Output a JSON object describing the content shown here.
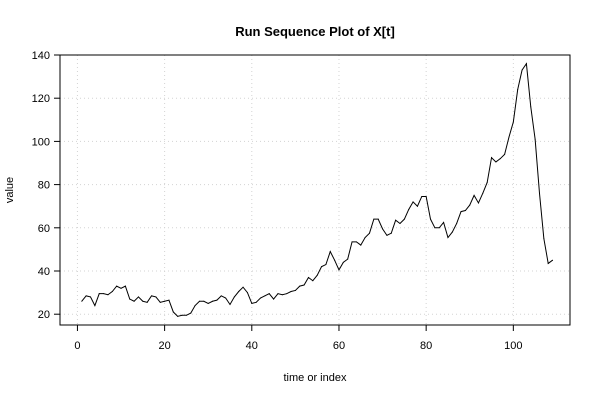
{
  "chart_data": {
    "type": "line",
    "title": "Run Sequence Plot of X[t]",
    "xlabel": "time or index",
    "ylabel": "value",
    "xlim": [
      -4,
      113
    ],
    "ylim": [
      15,
      140
    ],
    "x_ticks": [
      0,
      20,
      40,
      60,
      80,
      100
    ],
    "y_ticks": [
      20,
      40,
      60,
      80,
      100,
      120,
      140
    ],
    "grid": true,
    "series": [
      {
        "color": "#000000",
        "values": [
          26,
          28.5,
          28,
          24,
          29.5,
          29.5,
          29,
          30.5,
          33,
          32,
          33,
          27,
          26,
          28,
          26,
          25.5,
          28.5,
          28,
          25.5,
          26,
          26.5,
          21,
          19,
          19.5,
          19.5,
          20.5,
          24,
          26,
          26,
          25,
          26,
          26.5,
          28.5,
          27.5,
          24.5,
          28,
          30.5,
          32.5,
          30,
          25,
          25.5,
          27.5,
          28.5,
          29.5,
          27,
          29.5,
          29,
          29.5,
          30.5,
          31,
          33,
          33.5,
          37,
          35.5,
          38,
          42,
          43,
          49,
          45,
          40.5,
          44,
          45.5,
          53.5,
          53.5,
          52,
          55.5,
          57.5,
          64,
          64,
          59.5,
          56.5,
          57.5,
          63.5,
          62,
          64,
          68.5,
          72,
          70,
          74.5,
          74.5,
          64,
          60,
          60,
          62.5,
          55.5,
          58,
          62,
          67.5,
          68,
          70.5,
          75,
          71.5,
          76,
          81,
          92.5,
          90.5,
          92,
          94,
          102,
          109,
          124,
          133,
          136,
          116,
          101,
          76,
          55,
          43.5,
          45
        ]
      }
    ]
  }
}
